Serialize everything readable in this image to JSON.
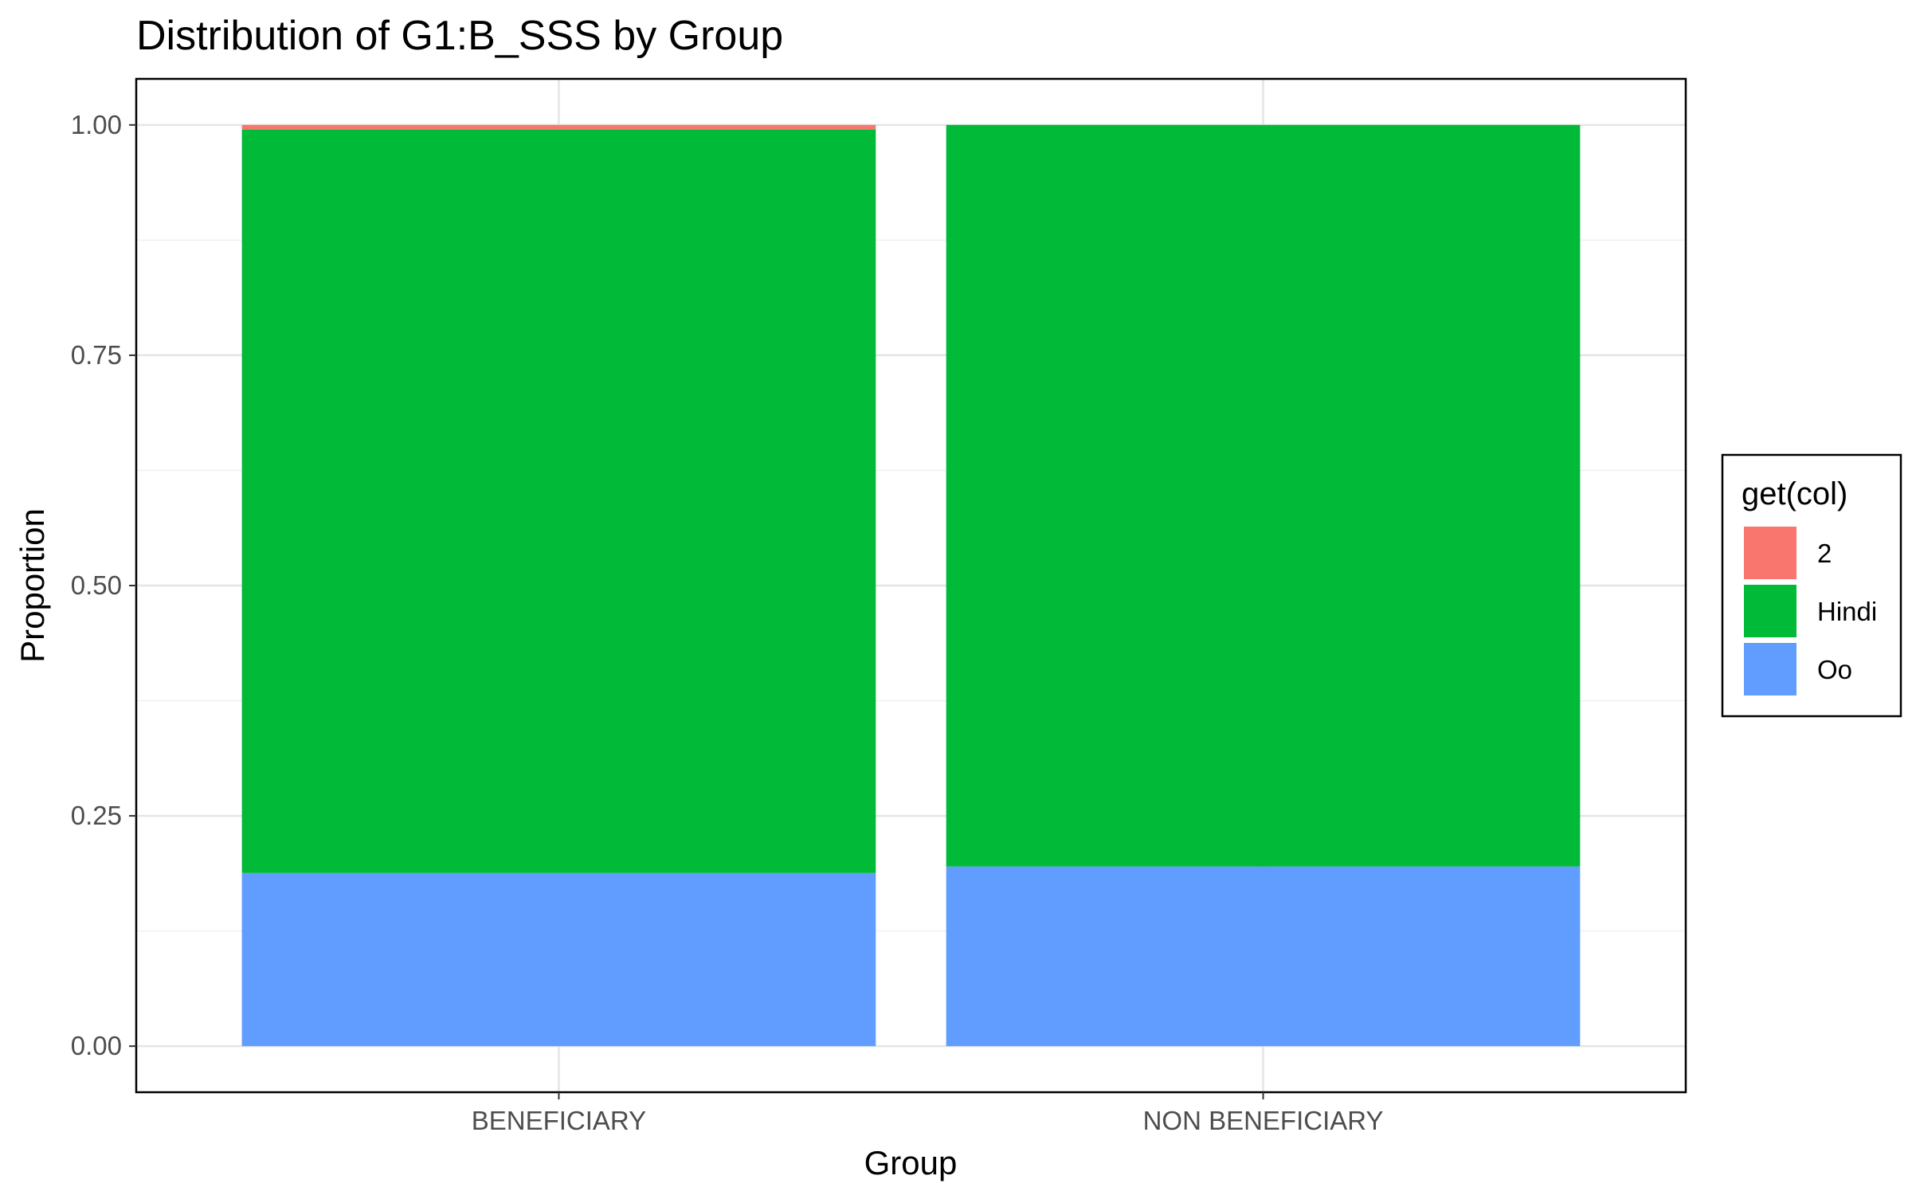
{
  "chart_data": {
    "type": "bar",
    "stacked": true,
    "title": "Distribution of G1:B_SSS by Group",
    "xlabel": "Group",
    "ylabel": "Proportion",
    "ylim": [
      -0.05,
      1.05
    ],
    "yticks": [
      0,
      0.25,
      0.5,
      0.75,
      1
    ],
    "ytick_labels": [
      "0.00",
      "0.25",
      "0.50",
      "0.75",
      "1.00"
    ],
    "grid": true,
    "legend_title": "get(col)",
    "legend_position": "right",
    "categories": [
      "BENEFICIARY",
      "NON BENEFICIARY"
    ],
    "series": [
      {
        "name": "2",
        "color": "#F8766D",
        "values": [
          0.005,
          0.0
        ]
      },
      {
        "name": "Hindi",
        "color": "#00BA38",
        "values": [
          0.807,
          0.805
        ]
      },
      {
        "name": "Oo",
        "color": "#619CFF",
        "values": [
          0.188,
          0.195
        ]
      }
    ]
  }
}
